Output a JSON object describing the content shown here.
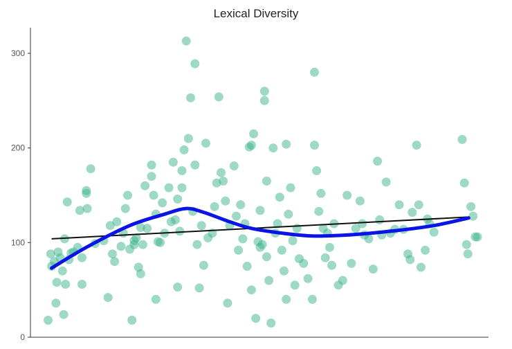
{
  "chart_data": {
    "type": "scatter",
    "title": "Lexical Diversity",
    "xlabel": "",
    "ylabel": "",
    "ylim": [
      0,
      330
    ],
    "xlim": [
      0,
      1
    ],
    "y_ticks": [
      "0",
      "100",
      "200",
      "300"
    ],
    "grid": false,
    "legend": "none",
    "colors": {
      "points": "#3cb48c",
      "smooth": "#0a14e6",
      "linear": "#111111",
      "axis": "#333333"
    },
    "points": [
      [
        0.012,
        18
      ],
      [
        0.018,
        88
      ],
      [
        0.02,
        75
      ],
      [
        0.026,
        80
      ],
      [
        0.03,
        36
      ],
      [
        0.032,
        58
      ],
      [
        0.035,
        90
      ],
      [
        0.04,
        84
      ],
      [
        0.045,
        70
      ],
      [
        0.048,
        24
      ],
      [
        0.05,
        104
      ],
      [
        0.052,
        56
      ],
      [
        0.056,
        143
      ],
      [
        0.06,
        82
      ],
      [
        0.065,
        89
      ],
      [
        0.07,
        90
      ],
      [
        0.08,
        95
      ],
      [
        0.085,
        134
      ],
      [
        0.09,
        56
      ],
      [
        0.09,
        84
      ],
      [
        0.1,
        155
      ],
      [
        0.1,
        152
      ],
      [
        0.102,
        136
      ],
      [
        0.11,
        178
      ],
      [
        0.12,
        99
      ],
      [
        0.14,
        102
      ],
      [
        0.15,
        42
      ],
      [
        0.155,
        118
      ],
      [
        0.16,
        88
      ],
      [
        0.165,
        80
      ],
      [
        0.17,
        122
      ],
      [
        0.18,
        96
      ],
      [
        0.185,
        110
      ],
      [
        0.19,
        136
      ],
      [
        0.195,
        150
      ],
      [
        0.2,
        93
      ],
      [
        0.205,
        18
      ],
      [
        0.21,
        98
      ],
      [
        0.21,
        102
      ],
      [
        0.215,
        105
      ],
      [
        0.22,
        74
      ],
      [
        0.225,
        67
      ],
      [
        0.225,
        116
      ],
      [
        0.23,
        98
      ],
      [
        0.235,
        160
      ],
      [
        0.24,
        115
      ],
      [
        0.25,
        182
      ],
      [
        0.25,
        170
      ],
      [
        0.255,
        150
      ],
      [
        0.26,
        40
      ],
      [
        0.26,
        130
      ],
      [
        0.265,
        101
      ],
      [
        0.27,
        100
      ],
      [
        0.275,
        142
      ],
      [
        0.28,
        110
      ],
      [
        0.29,
        158
      ],
      [
        0.295,
        122
      ],
      [
        0.3,
        185
      ],
      [
        0.305,
        124
      ],
      [
        0.31,
        53
      ],
      [
        0.31,
        146
      ],
      [
        0.315,
        112
      ],
      [
        0.32,
        158
      ],
      [
        0.32,
        176
      ],
      [
        0.325,
        198
      ],
      [
        0.33,
        313
      ],
      [
        0.335,
        210
      ],
      [
        0.34,
        253
      ],
      [
        0.345,
        133
      ],
      [
        0.35,
        289
      ],
      [
        0.35,
        182
      ],
      [
        0.355,
        98
      ],
      [
        0.36,
        52
      ],
      [
        0.365,
        118
      ],
      [
        0.37,
        76
      ],
      [
        0.375,
        205
      ],
      [
        0.38,
        105
      ],
      [
        0.39,
        110
      ],
      [
        0.395,
        138
      ],
      [
        0.4,
        163
      ],
      [
        0.405,
        254
      ],
      [
        0.41,
        174
      ],
      [
        0.415,
        165
      ],
      [
        0.42,
        144
      ],
      [
        0.425,
        36
      ],
      [
        0.43,
        118
      ],
      [
        0.44,
        181
      ],
      [
        0.445,
        128
      ],
      [
        0.45,
        92
      ],
      [
        0.455,
        140
      ],
      [
        0.46,
        104
      ],
      [
        0.465,
        120
      ],
      [
        0.47,
        75
      ],
      [
        0.475,
        201
      ],
      [
        0.48,
        203
      ],
      [
        0.48,
        50
      ],
      [
        0.485,
        215
      ],
      [
        0.49,
        20
      ],
      [
        0.495,
        101
      ],
      [
        0.5,
        134
      ],
      [
        0.5,
        95
      ],
      [
        0.505,
        98
      ],
      [
        0.51,
        260
      ],
      [
        0.51,
        250
      ],
      [
        0.515,
        165
      ],
      [
        0.515,
        85
      ],
      [
        0.52,
        60
      ],
      [
        0.525,
        15
      ],
      [
        0.53,
        200
      ],
      [
        0.535,
        110
      ],
      [
        0.54,
        120
      ],
      [
        0.545,
        148
      ],
      [
        0.55,
        92
      ],
      [
        0.555,
        70
      ],
      [
        0.56,
        204
      ],
      [
        0.56,
        40
      ],
      [
        0.565,
        130
      ],
      [
        0.57,
        158
      ],
      [
        0.575,
        102
      ],
      [
        0.58,
        55
      ],
      [
        0.585,
        115
      ],
      [
        0.59,
        83
      ],
      [
        0.6,
        78
      ],
      [
        0.61,
        62
      ],
      [
        0.62,
        40
      ],
      [
        0.625,
        203
      ],
      [
        0.625,
        280
      ],
      [
        0.63,
        176
      ],
      [
        0.635,
        133
      ],
      [
        0.64,
        152
      ],
      [
        0.645,
        115
      ],
      [
        0.65,
        84
      ],
      [
        0.655,
        110
      ],
      [
        0.66,
        95
      ],
      [
        0.665,
        76
      ],
      [
        0.67,
        120
      ],
      [
        0.68,
        55
      ],
      [
        0.69,
        60
      ],
      [
        0.7,
        150
      ],
      [
        0.71,
        78
      ],
      [
        0.72,
        115
      ],
      [
        0.73,
        144
      ],
      [
        0.735,
        120
      ],
      [
        0.74,
        108
      ],
      [
        0.75,
        104
      ],
      [
        0.76,
        72
      ],
      [
        0.77,
        186
      ],
      [
        0.775,
        124
      ],
      [
        0.78,
        108
      ],
      [
        0.79,
        164
      ],
      [
        0.8,
        110
      ],
      [
        0.81,
        114
      ],
      [
        0.82,
        140
      ],
      [
        0.83,
        114
      ],
      [
        0.84,
        88
      ],
      [
        0.845,
        82
      ],
      [
        0.85,
        132
      ],
      [
        0.86,
        203
      ],
      [
        0.865,
        140
      ],
      [
        0.87,
        74
      ],
      [
        0.88,
        92
      ],
      [
        0.885,
        125
      ],
      [
        0.89,
        120
      ],
      [
        0.9,
        111
      ],
      [
        0.965,
        209
      ],
      [
        0.97,
        163
      ],
      [
        0.975,
        98
      ],
      [
        0.978,
        88
      ],
      [
        0.985,
        138
      ],
      [
        0.99,
        128
      ],
      [
        0.995,
        106
      ],
      [
        1.0,
        106
      ]
    ],
    "smooth_line": [
      [
        0.02,
        73
      ],
      [
        0.1,
        95
      ],
      [
        0.2,
        118
      ],
      [
        0.28,
        130
      ],
      [
        0.33,
        136
      ],
      [
        0.37,
        132
      ],
      [
        0.43,
        122
      ],
      [
        0.48,
        115
      ],
      [
        0.55,
        110
      ],
      [
        0.62,
        107
      ],
      [
        0.7,
        108
      ],
      [
        0.8,
        112
      ],
      [
        0.9,
        118
      ],
      [
        0.98,
        126
      ]
    ],
    "linear_line": [
      [
        0.02,
        104
      ],
      [
        0.98,
        127
      ]
    ]
  }
}
